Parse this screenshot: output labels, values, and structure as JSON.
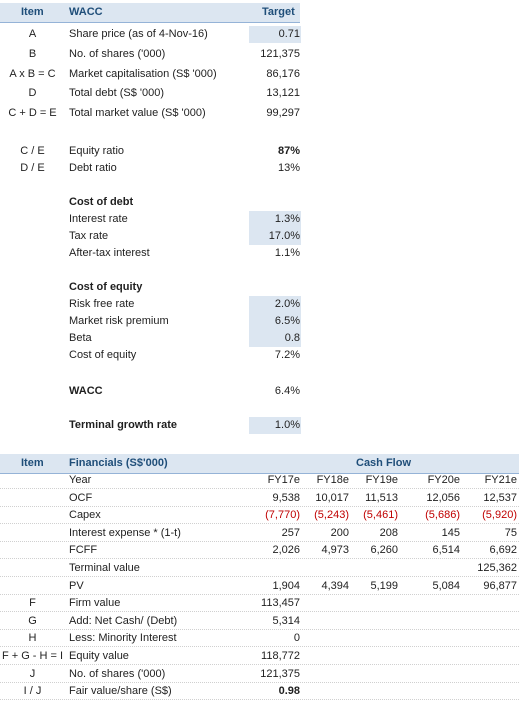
{
  "wacc": {
    "headers": {
      "item": "Item",
      "title": "WACC",
      "target": "Target"
    },
    "top_rows": [
      {
        "item": "A",
        "label": "Share price (as of 4-Nov-16)",
        "value": "0.71",
        "shaded": true
      },
      {
        "item": "B",
        "label": "No. of shares ('000)",
        "value": "121,375",
        "shaded": false
      },
      {
        "item": "A x B = C",
        "label": "Market capitalisation (S$ '000)",
        "value": "86,176",
        "shaded": false
      },
      {
        "item": "D",
        "label": "Total debt (S$ '000)",
        "value": "13,121",
        "shaded": false
      },
      {
        "item": "C + D = E",
        "label": "Total market value (S$ '000)",
        "value": "99,297",
        "shaded": false
      }
    ],
    "ratios": [
      {
        "item": "C / E",
        "label": "Equity ratio",
        "value": "87%",
        "bold": true
      },
      {
        "item": "D / E",
        "label": "Debt ratio",
        "value": "13%",
        "bold": false
      }
    ],
    "cost_of_debt": {
      "title": "Cost of debt",
      "rows": [
        {
          "label": "Interest rate",
          "value": "1.3%",
          "shaded": true
        },
        {
          "label": "Tax rate",
          "value": "17.0%",
          "shaded": true
        },
        {
          "label": "After-tax interest",
          "value": "1.1%",
          "shaded": false
        }
      ]
    },
    "cost_of_equity": {
      "title": "Cost of equity",
      "rows": [
        {
          "label": "Risk free rate",
          "value": "2.0%",
          "shaded": true
        },
        {
          "label": "Market risk premium",
          "value": "6.5%",
          "shaded": true
        },
        {
          "label": "Beta",
          "value": "0.8",
          "shaded": true
        },
        {
          "label": "Cost of equity",
          "value": "7.2%",
          "shaded": false
        }
      ]
    },
    "wacc_row": {
      "label": "WACC",
      "value": "6.4%"
    },
    "terminal_row": {
      "label": "Terminal growth rate",
      "value": "1.0%"
    }
  },
  "financials": {
    "headers": {
      "item": "Item",
      "title": "Financials (S$'000)",
      "cashflow": "Cash Flow"
    },
    "rows": [
      {
        "item": "",
        "label": "Year",
        "values": [
          "FY17e",
          "FY18e",
          "FY19e",
          "FY20e",
          "FY21e"
        ]
      },
      {
        "item": "",
        "label": "OCF",
        "values": [
          "9,538",
          "10,017",
          "11,513",
          "12,056",
          "12,537"
        ]
      },
      {
        "item": "",
        "label": "Capex",
        "values": [
          "(7,770)",
          "(5,243)",
          "(5,461)",
          "(5,686)",
          "(5,920)"
        ],
        "red": true
      },
      {
        "item": "",
        "label": "Interest expense * (1-t)",
        "values": [
          "257",
          "200",
          "208",
          "145",
          "75"
        ]
      },
      {
        "item": "",
        "label": "FCFF",
        "values": [
          "2,026",
          "4,973",
          "6,260",
          "6,514",
          "6,692"
        ]
      },
      {
        "item": "",
        "label": "Terminal value",
        "values": [
          "",
          "",
          "",
          "",
          "125,362"
        ]
      },
      {
        "item": "",
        "label": "PV",
        "values": [
          "1,904",
          "4,394",
          "5,199",
          "5,084",
          "96,877"
        ]
      },
      {
        "item": "F",
        "label": "Firm value",
        "values": [
          "113,457",
          "",
          "",
          "",
          ""
        ]
      },
      {
        "item": "G",
        "label": "Add: Net Cash/ (Debt)",
        "values": [
          "5,314",
          "",
          "",
          "",
          ""
        ]
      },
      {
        "item": "H",
        "label": "Less: Minority Interest",
        "values": [
          "0",
          "",
          "",
          "",
          ""
        ]
      },
      {
        "item": "F + G - H = I",
        "label": "Equity value",
        "values": [
          "118,772",
          "",
          "",
          "",
          ""
        ]
      },
      {
        "item": "J",
        "label": "No. of shares ('000)",
        "values": [
          "121,375",
          "",
          "",
          "",
          ""
        ]
      },
      {
        "item": "I / J",
        "label": "Fair value/share (S$)",
        "values": [
          "0.98",
          "",
          "",
          "",
          ""
        ],
        "bold_first": true
      }
    ]
  },
  "colors": {
    "header_bg": "#dce6f1",
    "header_text": "#1f4e79",
    "input_shade": "#dce6f1",
    "negative": "#c00000"
  }
}
